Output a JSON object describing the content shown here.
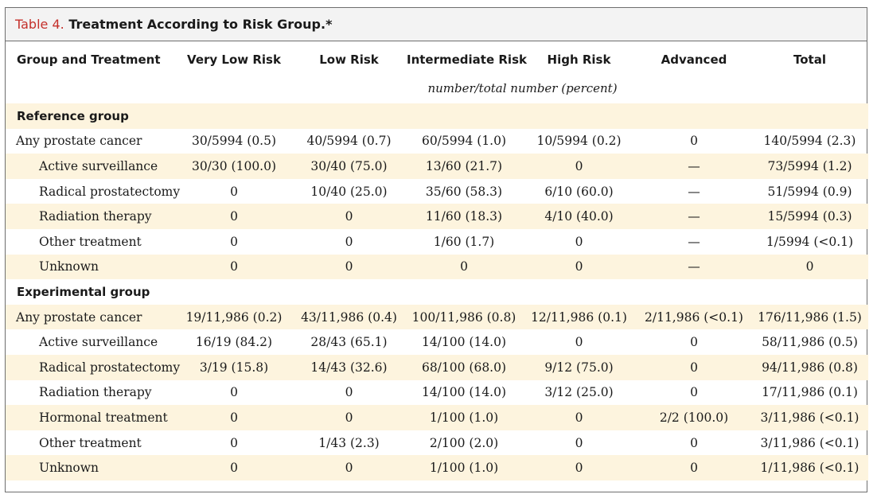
{
  "title": {
    "label": "Table 4.",
    "text": "Treatment According to Risk Group.*"
  },
  "columns": [
    "Group and Treatment",
    "Very Low Risk",
    "Low Risk",
    "Intermediate Risk",
    "High Risk",
    "Advanced",
    "Total"
  ],
  "unit_label": "number/total number (percent)",
  "reference": {
    "heading": "Reference group",
    "rows": [
      {
        "label": "Any prostate cancer",
        "values": [
          "30/5994 (0.5)",
          "40/5994 (0.7)",
          "60/5994 (1.0)",
          "10/5994 (0.2)",
          "0",
          "140/5994 (2.3)"
        ]
      },
      {
        "label": "Active surveillance",
        "values": [
          "30/30 (100.0)",
          "30/40 (75.0)",
          "13/60 (21.7)",
          "0",
          "—",
          "73/5994 (1.2)"
        ]
      },
      {
        "label": "Radical prostatectomy",
        "values": [
          "0",
          "10/40 (25.0)",
          "35/60 (58.3)",
          "6/10 (60.0)",
          "—",
          "51/5994 (0.9)"
        ]
      },
      {
        "label": "Radiation therapy",
        "values": [
          "0",
          "0",
          "11/60 (18.3)",
          "4/10 (40.0)",
          "—",
          "15/5994 (0.3)"
        ]
      },
      {
        "label": "Other treatment",
        "values": [
          "0",
          "0",
          "1/60 (1.7)",
          "0",
          "—",
          "1/5994 (<0.1)"
        ]
      },
      {
        "label": "Unknown",
        "values": [
          "0",
          "0",
          "0",
          "0",
          "—",
          "0"
        ]
      }
    ]
  },
  "experimental": {
    "heading": "Experimental group",
    "rows": [
      {
        "label": "Any prostate cancer",
        "values": [
          "19/11,986 (0.2)",
          "43/11,986 (0.4)",
          "100/11,986 (0.8)",
          "12/11,986 (0.1)",
          "2/11,986 (<0.1)",
          "176/11,986 (1.5)"
        ]
      },
      {
        "label": "Active surveillance",
        "values": [
          "16/19 (84.2)",
          "28/43 (65.1)",
          "14/100 (14.0)",
          "0",
          "0",
          "58/11,986 (0.5)"
        ]
      },
      {
        "label": "Radical prostatectomy",
        "values": [
          "3/19 (15.8)",
          "14/43 (32.6)",
          "68/100 (68.0)",
          "9/12 (75.0)",
          "0",
          "94/11,986 (0.8)"
        ]
      },
      {
        "label": "Radiation therapy",
        "values": [
          "0",
          "0",
          "14/100 (14.0)",
          "3/12 (25.0)",
          "0",
          "17/11,986 (0.1)"
        ]
      },
      {
        "label": "Hormonal treatment",
        "values": [
          "0",
          "0",
          "1/100 (1.0)",
          "0",
          "2/2 (100.0)",
          "3/11,986 (<0.1)"
        ]
      },
      {
        "label": "Other treatment",
        "values": [
          "0",
          "1/43 (2.3)",
          "2/100 (2.0)",
          "0",
          "0",
          "3/11,986 (<0.1)"
        ]
      },
      {
        "label": "Unknown",
        "values": [
          "0",
          "0",
          "1/100 (1.0)",
          "0",
          "0",
          "1/11,986 (<0.1)"
        ]
      }
    ]
  },
  "colors": {
    "title_number": "#c4302b",
    "row_shade": "#fdf4de",
    "title_bg": "#f3f3f3",
    "border": "#6e6e6e"
  }
}
